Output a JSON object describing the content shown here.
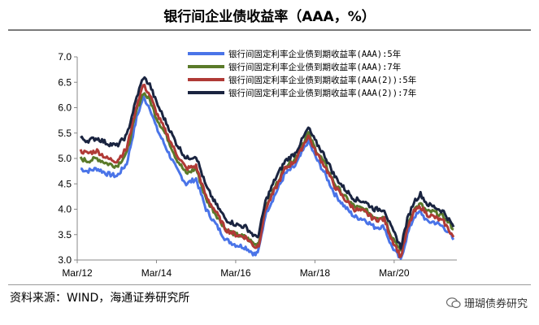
{
  "page": {
    "title": "银行间企业债收益率（AAA，%）",
    "source": "资料来源：WIND，海通证券研究所",
    "watermark": "珊瑚债券研究"
  },
  "chart_data": {
    "type": "line",
    "title": "银行间企业债收益率（AAA，%）",
    "xlabel": "",
    "ylabel": "",
    "xlim": [
      "2012-03",
      "2021-10"
    ],
    "ylim": [
      3.0,
      7.0
    ],
    "yticks": [
      3.0,
      3.5,
      4.0,
      4.5,
      5.0,
      5.5,
      6.0,
      6.5,
      7.0
    ],
    "xticks": [
      {
        "date": "2012-03",
        "label": "Mar/12"
      },
      {
        "date": "2014-03",
        "label": "Mar/14"
      },
      {
        "date": "2016-03",
        "label": "Mar/16"
      },
      {
        "date": "2018-03",
        "label": "Mar/18"
      },
      {
        "date": "2020-03",
        "label": "Mar/20"
      }
    ],
    "grid": false,
    "legend_position": "top-right",
    "series": [
      {
        "name": "银行间固定利率企业债到期收益率(AAA):5年",
        "color": "#4a74e8",
        "x": [
          "2012-04",
          "2012-06",
          "2012-09",
          "2012-12",
          "2013-03",
          "2013-06",
          "2013-09",
          "2013-11",
          "2014-01",
          "2014-03",
          "2014-06",
          "2014-09",
          "2014-12",
          "2015-03",
          "2015-06",
          "2015-09",
          "2015-12",
          "2016-03",
          "2016-06",
          "2016-09",
          "2016-10",
          "2016-12",
          "2017-03",
          "2017-06",
          "2017-09",
          "2017-11",
          "2018-01",
          "2018-03",
          "2018-06",
          "2018-09",
          "2018-12",
          "2019-03",
          "2019-06",
          "2019-09",
          "2019-12",
          "2020-02",
          "2020-04",
          "2020-05",
          "2020-07",
          "2020-09",
          "2020-11",
          "2021-01",
          "2021-03",
          "2021-06",
          "2021-08",
          "2021-09"
        ],
        "y": [
          4.8,
          4.75,
          4.8,
          4.7,
          4.65,
          4.9,
          5.8,
          6.2,
          6.0,
          5.6,
          5.2,
          4.8,
          4.5,
          4.6,
          4.0,
          3.7,
          3.4,
          3.3,
          3.25,
          3.1,
          3.2,
          3.9,
          4.3,
          4.7,
          4.85,
          5.1,
          5.35,
          5.05,
          4.7,
          4.3,
          4.05,
          3.85,
          3.8,
          3.65,
          3.65,
          3.3,
          3.1,
          3.0,
          3.5,
          3.85,
          3.95,
          3.75,
          3.75,
          3.65,
          3.5,
          3.4
        ]
      },
      {
        "name": "银行间固定利率企业债到期收益率(AAA):7年",
        "color": "#5a7a2a",
        "x": [
          "2012-04",
          "2012-06",
          "2012-09",
          "2012-12",
          "2013-03",
          "2013-06",
          "2013-09",
          "2013-11",
          "2014-01",
          "2014-03",
          "2014-06",
          "2014-09",
          "2014-12",
          "2015-03",
          "2015-06",
          "2015-09",
          "2015-12",
          "2016-03",
          "2016-06",
          "2016-09",
          "2016-10",
          "2016-12",
          "2017-03",
          "2017-06",
          "2017-09",
          "2017-11",
          "2018-01",
          "2018-03",
          "2018-06",
          "2018-09",
          "2018-12",
          "2019-03",
          "2019-06",
          "2019-09",
          "2019-12",
          "2020-02",
          "2020-04",
          "2020-05",
          "2020-07",
          "2020-09",
          "2020-11",
          "2021-01",
          "2021-03",
          "2021-06",
          "2021-08",
          "2021-09"
        ],
        "y": [
          5.0,
          4.95,
          5.0,
          4.9,
          4.85,
          5.1,
          5.95,
          6.3,
          6.15,
          5.8,
          5.45,
          5.0,
          4.7,
          4.8,
          4.2,
          3.9,
          3.6,
          3.5,
          3.45,
          3.3,
          3.35,
          4.05,
          4.45,
          4.85,
          5.0,
          5.25,
          5.5,
          5.2,
          4.9,
          4.5,
          4.25,
          4.05,
          4.0,
          3.85,
          3.85,
          3.5,
          3.3,
          3.15,
          3.7,
          4.0,
          4.1,
          3.95,
          3.95,
          3.85,
          3.7,
          3.6
        ]
      },
      {
        "name": "银行间固定利率企业债到期收益率(AAA(2)):5年",
        "color": "#b03a36",
        "x": [
          "2012-04",
          "2012-06",
          "2012-09",
          "2012-12",
          "2013-03",
          "2013-06",
          "2013-09",
          "2013-11",
          "2014-01",
          "2014-03",
          "2014-06",
          "2014-09",
          "2014-12",
          "2015-03",
          "2015-06",
          "2015-09",
          "2015-12",
          "2016-03",
          "2016-06",
          "2016-09",
          "2016-10",
          "2016-12",
          "2017-03",
          "2017-06",
          "2017-09",
          "2017-11",
          "2018-01",
          "2018-03",
          "2018-06",
          "2018-09",
          "2018-12",
          "2019-03",
          "2019-06",
          "2019-09",
          "2019-12",
          "2020-02",
          "2020-04",
          "2020-05",
          "2020-07",
          "2020-09",
          "2020-11",
          "2021-01",
          "2021-03",
          "2021-06",
          "2021-08",
          "2021-09"
        ],
        "y": [
          5.15,
          5.1,
          5.15,
          5.0,
          4.95,
          5.2,
          6.05,
          6.45,
          6.25,
          5.9,
          5.5,
          5.1,
          4.8,
          4.85,
          4.25,
          3.95,
          3.6,
          3.5,
          3.45,
          3.25,
          3.3,
          4.0,
          4.4,
          4.8,
          4.95,
          5.2,
          5.45,
          5.15,
          4.85,
          4.45,
          4.2,
          4.0,
          3.95,
          3.8,
          3.8,
          3.45,
          3.2,
          3.05,
          3.6,
          3.95,
          4.05,
          3.9,
          3.85,
          3.75,
          3.55,
          3.45
        ]
      },
      {
        "name": "银行间固定利率企业债到期收益率(AAA(2)):7年",
        "color": "#1a2440",
        "x": [
          "2012-04",
          "2012-06",
          "2012-09",
          "2012-12",
          "2013-03",
          "2013-06",
          "2013-09",
          "2013-11",
          "2014-01",
          "2014-03",
          "2014-06",
          "2014-09",
          "2014-12",
          "2015-03",
          "2015-06",
          "2015-09",
          "2015-12",
          "2016-03",
          "2016-06",
          "2016-09",
          "2016-10",
          "2016-12",
          "2017-03",
          "2017-06",
          "2017-09",
          "2017-11",
          "2018-01",
          "2018-03",
          "2018-06",
          "2018-09",
          "2018-12",
          "2019-03",
          "2019-06",
          "2019-09",
          "2019-12",
          "2020-02",
          "2020-04",
          "2020-05",
          "2020-07",
          "2020-09",
          "2020-11",
          "2021-01",
          "2021-03",
          "2021-06",
          "2021-08",
          "2021-09"
        ],
        "y": [
          5.4,
          5.35,
          5.4,
          5.3,
          5.25,
          5.45,
          6.2,
          6.6,
          6.45,
          6.1,
          5.7,
          5.3,
          5.0,
          5.05,
          4.45,
          4.1,
          3.8,
          3.7,
          3.65,
          3.45,
          3.5,
          4.15,
          4.6,
          4.95,
          5.1,
          5.35,
          5.6,
          5.35,
          5.05,
          4.65,
          4.4,
          4.2,
          4.15,
          4.0,
          4.0,
          3.65,
          3.4,
          3.25,
          3.8,
          4.15,
          4.3,
          4.1,
          4.05,
          3.95,
          3.75,
          3.65
        ]
      }
    ]
  }
}
